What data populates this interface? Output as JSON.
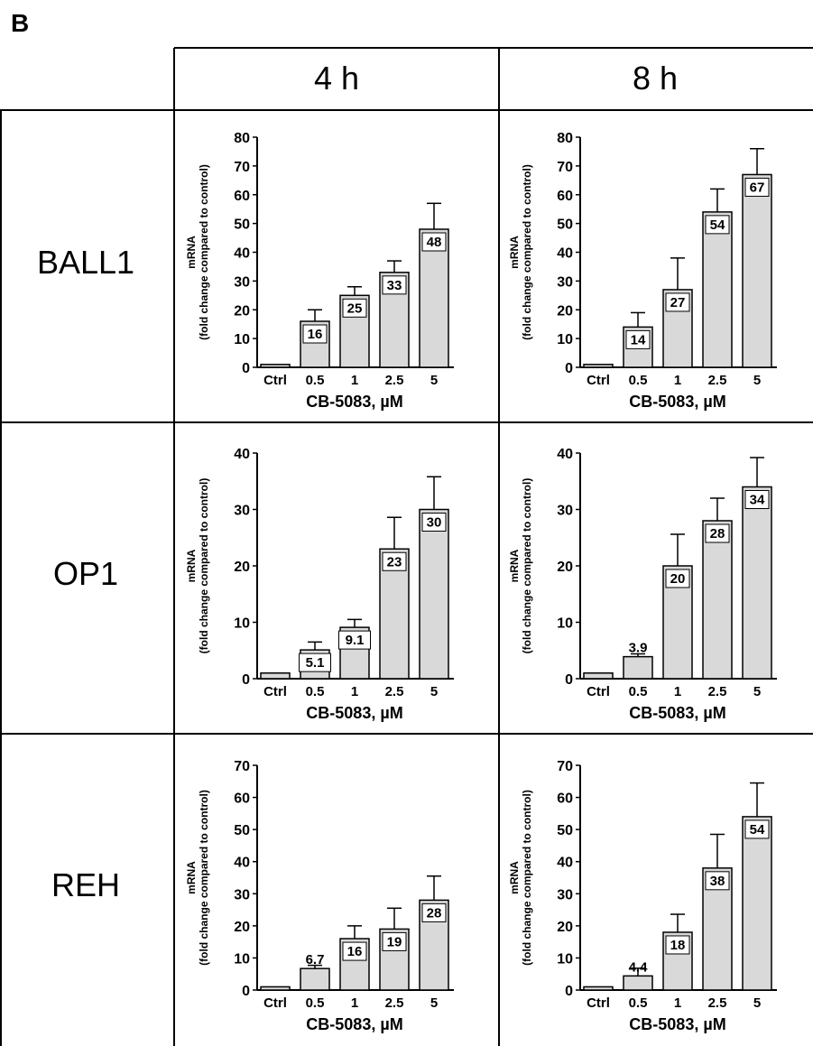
{
  "panel_letter": "B",
  "column_headers": [
    "4 h",
    "8 h"
  ],
  "row_headers": [
    "BALL1",
    "OP1",
    "REH"
  ],
  "chart_data": [
    {
      "type": "bar",
      "row": "BALL1",
      "column": "4 h",
      "categories": [
        "Ctrl",
        "0.5",
        "1",
        "2.5",
        "5"
      ],
      "values": [
        1,
        16,
        25,
        33,
        48
      ],
      "errors": [
        0,
        4,
        3,
        4,
        9
      ],
      "data_labels": [
        "",
        "16",
        "25",
        "33",
        "48"
      ],
      "xlabel": "CB-5083, µM",
      "ylabel": "mRNA\n(fold change compared to control)",
      "ylim": [
        0,
        80
      ],
      "yticks": [
        0,
        10,
        20,
        30,
        40,
        50,
        60,
        70,
        80
      ]
    },
    {
      "type": "bar",
      "row": "BALL1",
      "column": "8 h",
      "categories": [
        "Ctrl",
        "0.5",
        "1",
        "2.5",
        "5"
      ],
      "values": [
        1,
        14,
        27,
        54,
        67
      ],
      "errors": [
        0,
        5,
        11,
        8,
        9
      ],
      "data_labels": [
        "",
        "14",
        "27",
        "54",
        "67"
      ],
      "xlabel": "CB-5083, µM",
      "ylabel": "mRNA\n(fold change compared to control)",
      "ylim": [
        0,
        80
      ],
      "yticks": [
        0,
        10,
        20,
        30,
        40,
        50,
        60,
        70,
        80
      ]
    },
    {
      "type": "bar",
      "row": "OP1",
      "column": "4 h",
      "categories": [
        "Ctrl",
        "0.5",
        "1",
        "2.5",
        "5"
      ],
      "values": [
        1,
        5.1,
        9.1,
        23,
        30
      ],
      "errors": [
        0,
        1.4,
        1.4,
        5.6,
        5.8
      ],
      "data_labels": [
        "",
        "5.1",
        "9.1",
        "23",
        "30"
      ],
      "xlabel": "CB-5083, µM",
      "ylabel": "mRNA\n(fold change compared to control)",
      "ylim": [
        0,
        40
      ],
      "yticks": [
        0,
        10,
        20,
        30,
        40
      ]
    },
    {
      "type": "bar",
      "row": "OP1",
      "column": "8 h",
      "categories": [
        "Ctrl",
        "0.5",
        "1",
        "2.5",
        "5"
      ],
      "values": [
        1,
        3.9,
        20,
        28,
        34
      ],
      "errors": [
        0,
        0.5,
        5.6,
        4,
        5.2
      ],
      "data_labels": [
        "",
        "3.9",
        "20",
        "28",
        "34"
      ],
      "xlabel": "CB-5083, µM",
      "ylabel": "mRNA\n(fold change compared to control)",
      "ylim": [
        0,
        40
      ],
      "yticks": [
        0,
        10,
        20,
        30,
        40
      ]
    },
    {
      "type": "bar",
      "row": "REH",
      "column": "4 h",
      "categories": [
        "Ctrl",
        "0.5",
        "1",
        "2.5",
        "5"
      ],
      "values": [
        1,
        6.7,
        16,
        19,
        28
      ],
      "errors": [
        0,
        1,
        4,
        6.5,
        7.5
      ],
      "data_labels": [
        "",
        "6.7",
        "16",
        "19",
        "28"
      ],
      "xlabel": "CB-5083, µM",
      "ylabel": "mRNA\n(fold change compared to control)",
      "ylim": [
        0,
        70
      ],
      "yticks": [
        0,
        10,
        20,
        30,
        40,
        50,
        60,
        70
      ]
    },
    {
      "type": "bar",
      "row": "REH",
      "column": "8 h",
      "categories": [
        "Ctrl",
        "0.5",
        "1",
        "2.5",
        "5"
      ],
      "values": [
        1,
        4.4,
        18,
        38,
        54
      ],
      "errors": [
        0,
        2.4,
        5.6,
        10.5,
        10.5
      ],
      "data_labels": [
        "",
        "4.4",
        "18",
        "38",
        "54"
      ],
      "xlabel": "CB-5083, µM",
      "ylabel": "mRNA\n(fold change compared to control)",
      "ylim": [
        0,
        70
      ],
      "yticks": [
        0,
        10,
        20,
        30,
        40,
        50,
        60,
        70
      ]
    }
  ],
  "colors": {
    "bar_fill": "#d9d9d9",
    "stroke": "#000000"
  }
}
